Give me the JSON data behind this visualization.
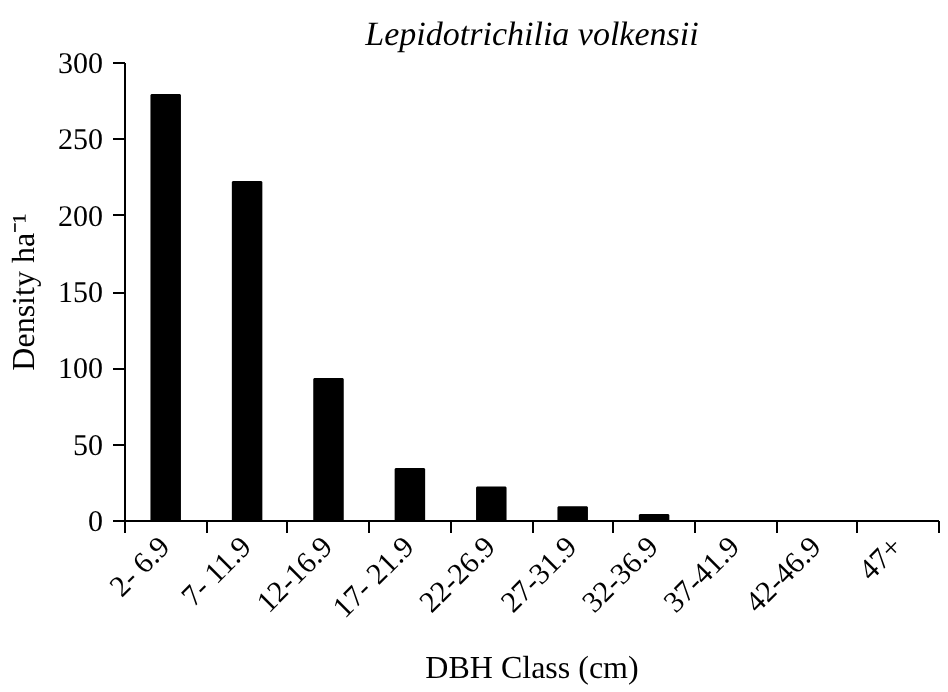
{
  "chart_data": {
    "type": "bar",
    "title": "Lepidotrichilia volkensii",
    "xlabel": "DBH Class (cm)",
    "ylabel": "Density ha⁻¹",
    "categories": [
      "2- 6.9",
      "7- 11.9",
      "12-16.9",
      "17- 21.9",
      "22-26.9",
      "27-31.9",
      "32-36.9",
      "37-41.9",
      "42-46.9",
      "47+"
    ],
    "values": [
      279,
      222,
      93,
      34,
      22,
      9,
      4,
      0,
      0,
      0
    ],
    "color": "#000000",
    "ylim": [
      0,
      300
    ],
    "yticks": [
      0,
      50,
      100,
      150,
      200,
      250,
      300
    ],
    "grid": false
  }
}
